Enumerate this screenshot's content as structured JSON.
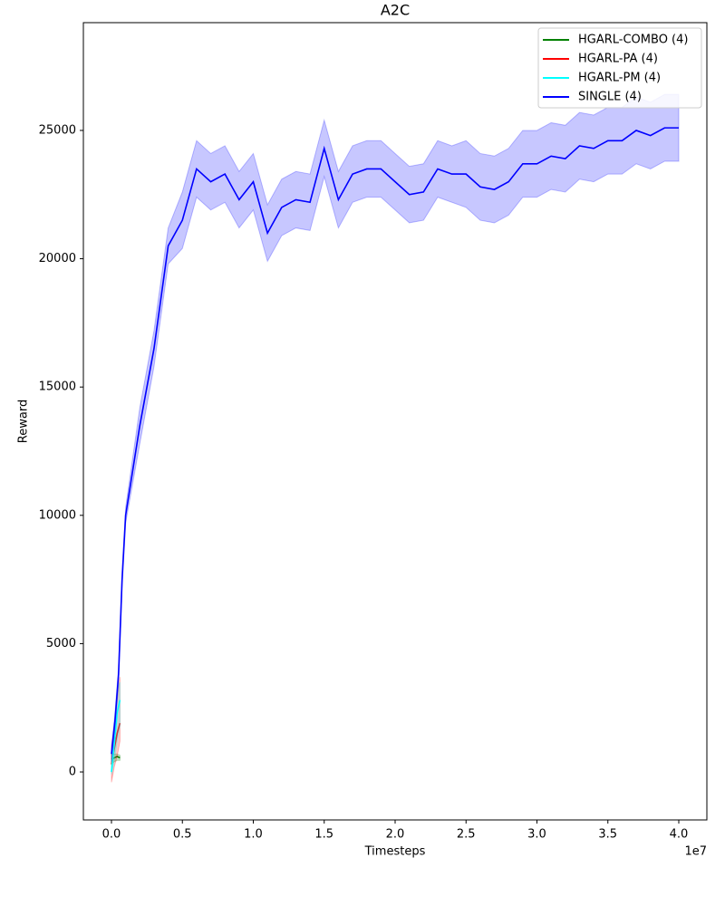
{
  "chart_data": {
    "type": "line",
    "title": "A2C",
    "x_label": "Timesteps",
    "y_label": "Reward",
    "x_offset_label": "1e7",
    "xlim": [
      -1980000,
      41980000
    ],
    "ylim": [
      -1870,
      29200
    ],
    "xticks": [
      {
        "value": 0,
        "label": "0.0"
      },
      {
        "value": 5000000,
        "label": "0.5"
      },
      {
        "value": 10000000,
        "label": "1.0"
      },
      {
        "value": 15000000,
        "label": "1.5"
      },
      {
        "value": 20000000,
        "label": "2.0"
      },
      {
        "value": 25000000,
        "label": "2.5"
      },
      {
        "value": 30000000,
        "label": "3.0"
      },
      {
        "value": 35000000,
        "label": "3.5"
      },
      {
        "value": 40000000,
        "label": "4.0"
      }
    ],
    "yticks": [
      0,
      5000,
      10000,
      15000,
      20000,
      25000
    ],
    "grid": false,
    "legend_position": "upper right",
    "series": [
      {
        "name": "HGARL-COMBO (4)",
        "color": "#008000",
        "x": [
          0,
          200000,
          400000,
          600000
        ],
        "values": [
          500,
          550,
          600,
          550
        ],
        "lower": [
          300,
          400,
          450,
          450
        ],
        "upper": [
          700,
          700,
          700,
          650
        ]
      },
      {
        "name": "HGARL-PA (4)",
        "color": "#ff0000",
        "x": [
          0,
          200000,
          400000,
          600000
        ],
        "values": [
          300,
          900,
          1500,
          1900
        ],
        "lower": [
          -400,
          200,
          600,
          1200
        ],
        "upper": [
          1000,
          1800,
          2800,
          3700
        ]
      },
      {
        "name": "HGARL-PM (4)",
        "color": "#00ffff",
        "x": [
          0,
          200000,
          400000,
          600000
        ],
        "values": [
          0,
          1100,
          2300,
          2800
        ],
        "lower": [
          -100,
          400,
          1200,
          1800
        ],
        "upper": [
          300,
          1800,
          3200,
          3500
        ]
      },
      {
        "name": "SINGLE (4)",
        "color": "#0000ff",
        "x": [
          0,
          250000,
          500000,
          750000,
          1000000,
          2000000,
          3000000,
          4000000,
          5000000,
          6000000,
          7000000,
          8000000,
          9000000,
          10000000,
          11000000,
          12000000,
          13000000,
          14000000,
          15000000,
          16000000,
          17000000,
          18000000,
          19000000,
          20000000,
          21000000,
          22000000,
          23000000,
          24000000,
          25000000,
          26000000,
          27000000,
          28000000,
          29000000,
          30000000,
          31000000,
          32000000,
          33000000,
          34000000,
          35000000,
          36000000,
          37000000,
          38000000,
          39000000,
          40000000
        ],
        "values": [
          700,
          2000,
          3800,
          7500,
          10000,
          13500,
          16500,
          20500,
          21500,
          23500,
          23000,
          23300,
          22300,
          23000,
          21000,
          22000,
          22300,
          22200,
          24300,
          22300,
          23300,
          23500,
          23500,
          23000,
          22500,
          22600,
          23500,
          23300,
          23300,
          22800,
          22700,
          23000,
          23700,
          23700,
          24000,
          23900,
          24400,
          24300,
          24600,
          24600,
          25000,
          24800,
          25100,
          25100
        ],
        "lower": [
          400,
          1700,
          3500,
          7200,
          9700,
          12800,
          15800,
          19800,
          20400,
          22400,
          21900,
          22200,
          21200,
          21900,
          19900,
          20900,
          21200,
          21100,
          23200,
          21200,
          22200,
          22400,
          22400,
          21900,
          21400,
          21500,
          22400,
          22200,
          22000,
          21500,
          21400,
          21700,
          22400,
          22400,
          22700,
          22600,
          23100,
          23000,
          23300,
          23300,
          23700,
          23500,
          23800,
          23800
        ],
        "upper": [
          1000,
          2300,
          4100,
          7800,
          10300,
          14200,
          17200,
          21200,
          22600,
          24600,
          24100,
          24400,
          23400,
          24100,
          22100,
          23100,
          23400,
          23300,
          25400,
          23400,
          24400,
          24600,
          24600,
          24100,
          23600,
          23700,
          24600,
          24400,
          24600,
          24100,
          24000,
          24300,
          25000,
          25000,
          25300,
          25200,
          25700,
          25600,
          25900,
          25900,
          26300,
          26100,
          26400,
          26400
        ]
      }
    ]
  }
}
